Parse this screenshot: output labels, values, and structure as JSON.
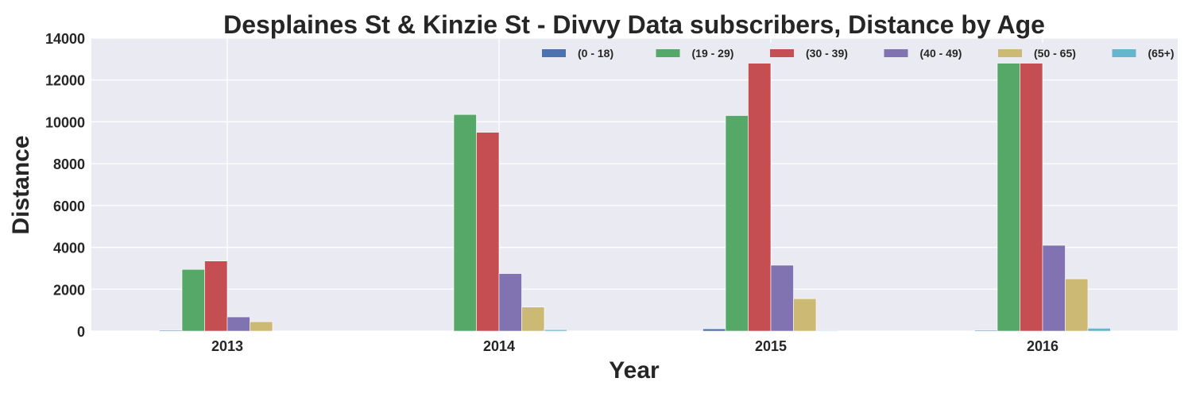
{
  "chart_data": {
    "type": "bar",
    "title": "Desplaines St & Kinzie St - Divvy Data subscribers, Distance by Age",
    "xlabel": "Year",
    "ylabel": "Distance",
    "categories": [
      "2013",
      "2014",
      "2015",
      "2016"
    ],
    "ylim": [
      0,
      14000
    ],
    "yticks": [
      0,
      2000,
      4000,
      6000,
      8000,
      10000,
      12000,
      14000
    ],
    "grid": true,
    "legend_position": "top-right",
    "series": [
      {
        "name": "(0 - 18)",
        "color": "#4c72b0",
        "values": [
          40,
          0,
          110,
          40
        ]
      },
      {
        "name": "(19 - 29)",
        "color": "#55a868",
        "values": [
          2950,
          10350,
          10300,
          12800
        ]
      },
      {
        "name": "(30 - 39)",
        "color": "#c44e52",
        "values": [
          3350,
          9500,
          12800,
          12800
        ]
      },
      {
        "name": "(40 - 49)",
        "color": "#8172b2",
        "values": [
          680,
          2750,
          3150,
          4100
        ]
      },
      {
        "name": "(50 - 65)",
        "color": "#ccb974",
        "values": [
          450,
          1150,
          1550,
          2500
        ]
      },
      {
        "name": "(65+)",
        "color": "#64b5cd",
        "values": [
          0,
          70,
          30,
          140
        ]
      }
    ]
  }
}
